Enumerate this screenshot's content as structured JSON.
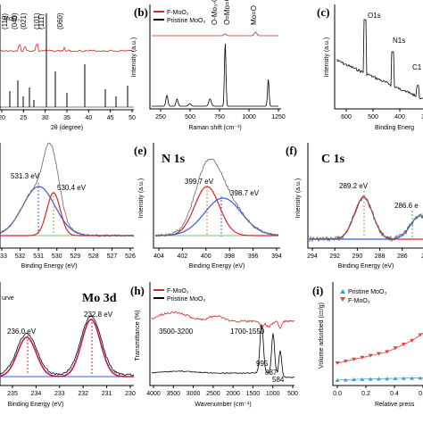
{
  "chart_data": [
    {
      "panel": "a",
      "type": "line",
      "label": "",
      "legend": [
        "",
        "MoO₃"
      ],
      "peaks": [
        "(110)",
        "(040)",
        "(021)",
        "(101)",
        "(111)",
        "(060)"
      ],
      "xticks": [
        "20",
        "25",
        "30",
        "35",
        "40",
        "45",
        "50"
      ],
      "xlabel": "2θ (degree)",
      "xlim": [
        17.5,
        50
      ],
      "series": [
        {
          "color": "#d62728",
          "peaks_x": [
            12.8,
            23.4,
            25.7,
            27.3,
            33.7,
            39.0
          ]
        },
        {
          "color": "#000000",
          "peaks_x": [
            23.4,
            25.7,
            27.3,
            33.7,
            39.0,
            49.3
          ]
        }
      ]
    },
    {
      "panel": "b",
      "type": "line",
      "label": "(b)",
      "legend": [
        "F-MoO₃",
        "Pristine MoO₃"
      ],
      "bands": [
        "O-Mo₃-O",
        "O=Mo=O",
        "Mo=O"
      ],
      "xticks": [
        "250",
        "500",
        "750",
        "1000",
        "1250"
      ],
      "xlabel": "Raman shift (cm⁻¹)",
      "ylabel": "Intensity (a.u.)",
      "xlim": [
        100,
        1250
      ],
      "series": [
        {
          "name": "F-MoO₃",
          "color": "#d62728"
        },
        {
          "name": "Pristine MoO₃",
          "color": "#000000",
          "peaks_x": [
            285,
            337,
            666,
            820,
            995
          ]
        }
      ]
    },
    {
      "panel": "c",
      "type": "line",
      "label": "(c)",
      "peaks": [
        "O1s",
        "N1s",
        "C1"
      ],
      "xticks": [
        "600",
        "500",
        "400",
        "300"
      ],
      "xlabel": "Binding Energ",
      "ylabel": "Intensity (a.u.)",
      "xlim": [
        700,
        280
      ]
    },
    {
      "panel": "d",
      "type": "line",
      "peaks": [
        "531.3 eV",
        "530.4 eV"
      ],
      "xticks": [
        "533",
        "532",
        "531",
        "530",
        "529",
        "528",
        "527",
        "526"
      ],
      "xlabel": "Binding Energy (eV)",
      "xlim": [
        533.8,
        525.8
      ]
    },
    {
      "panel": "e",
      "type": "line",
      "label": "(e)",
      "title": "N 1s",
      "peaks": [
        "399.7 eV",
        "398.7 eV"
      ],
      "xticks": [
        "404",
        "402",
        "400",
        "398",
        "396",
        "394"
      ],
      "xlabel": "Binding Energy (eV)",
      "ylabel": "Intensity (a.u.)",
      "xlim": [
        405,
        393
      ]
    },
    {
      "panel": "f",
      "type": "line",
      "label": "(f)",
      "title": "C 1s",
      "peaks": [
        "289.2 eV",
        "286.6 e"
      ],
      "xticks": [
        "294",
        "292",
        "290",
        "288",
        "286",
        "28"
      ],
      "xlabel": "Binding Energy (eV)",
      "ylabel": "Intensity (a.u.)",
      "xlim": [
        295,
        284.5
      ]
    },
    {
      "panel": "g",
      "type": "line",
      "title": "Mo 3d",
      "legend": [
        "",
        "urve"
      ],
      "peaks": [
        "236.0 eV",
        "232.8 eV"
      ],
      "xticks": [
        "235",
        "234",
        "233",
        "232",
        "231",
        "230"
      ],
      "xlabel": "Binding Energy (eV)",
      "xlim": [
        237.5,
        230
      ]
    },
    {
      "panel": "h",
      "type": "line",
      "label": "(h)",
      "legend": [
        "F-MoO₃",
        "Pristine MoO₃"
      ],
      "bands": [
        "3500-3200",
        "1700-1550",
        "995",
        "887",
        "584"
      ],
      "xticks": [
        "4000",
        "3500",
        "3000",
        "2500",
        "2000",
        "1500",
        "1000",
        "500"
      ],
      "xlabel": "Wavenumber (cm⁻¹)",
      "ylabel": "Transmittance (%)",
      "xlim": [
        4000,
        400
      ]
    },
    {
      "panel": "i",
      "type": "scatter",
      "label": "(i)",
      "legend": [
        "Pristine MoO₃",
        "F-MoO₃"
      ],
      "xticks": [
        "0.0",
        "0.2",
        "0.4",
        "0.6"
      ],
      "xlabel": "Relative press",
      "ylabel": "Volume adsorbed (cc/g)",
      "xlim": [
        0,
        0.7
      ],
      "series": [
        {
          "name": "Pristine MoO₃",
          "color": "#3aa0d8",
          "x": [
            0.0,
            0.05,
            0.1,
            0.15,
            0.2,
            0.25,
            0.3,
            0.35,
            0.4,
            0.45,
            0.5,
            0.55,
            0.6,
            0.65
          ],
          "y": [
            0.5,
            0.6,
            0.7,
            0.75,
            0.8,
            0.85,
            0.9,
            0.95,
            1.0,
            1.05,
            1.1,
            1.15,
            1.2,
            1.25
          ]
        },
        {
          "name": "F-MoO₃",
          "color": "#e8433a",
          "x": [
            0.0,
            0.05,
            0.1,
            0.15,
            0.2,
            0.25,
            0.3,
            0.35,
            0.4,
            0.45,
            0.5,
            0.55,
            0.6,
            0.65
          ],
          "y": [
            5,
            5.5,
            6,
            6.5,
            7,
            7.5,
            8,
            9,
            10,
            11,
            12.5,
            14,
            17,
            18
          ]
        }
      ]
    }
  ]
}
